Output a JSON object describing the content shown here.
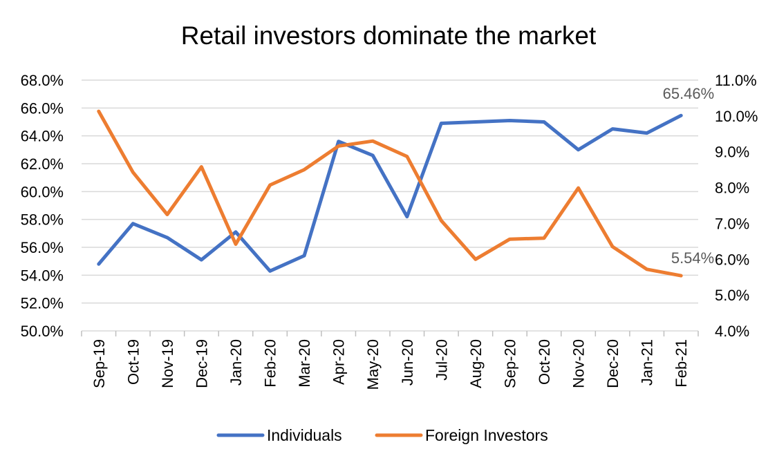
{
  "chart_data": {
    "type": "line",
    "title": "Retail investors dominate the market",
    "categories": [
      "Sep-19",
      "Oct-19",
      "Nov-19",
      "Dec-19",
      "Jan-20",
      "Feb-20",
      "Mar-20",
      "Apr-20",
      "May-20",
      "Jun-20",
      "Jul-20",
      "Aug-20",
      "Sep-20",
      "Oct-20",
      "Nov-20",
      "Dec-20",
      "Jan-21",
      "Feb-21"
    ],
    "y_left": {
      "min": 50,
      "max": 68,
      "step": 2,
      "ticks": [
        "50.0%",
        "52.0%",
        "54.0%",
        "56.0%",
        "58.0%",
        "60.0%",
        "62.0%",
        "64.0%",
        "66.0%",
        "68.0%"
      ]
    },
    "y_right": {
      "min": 4,
      "max": 11,
      "step": 1,
      "ticks": [
        "4.0%",
        "5.0%",
        "6.0%",
        "7.0%",
        "8.0%",
        "9.0%",
        "10.0%",
        "11.0%"
      ]
    },
    "grid": true,
    "legend_position": "bottom",
    "series": [
      {
        "name": "Individuals",
        "axis": "left",
        "color": "#4472C4",
        "values": [
          54.8,
          57.7,
          56.7,
          55.1,
          57.1,
          54.3,
          55.4,
          63.6,
          62.6,
          58.2,
          64.9,
          65.0,
          65.1,
          65.0,
          63.0,
          64.5,
          64.2,
          65.46
        ],
        "end_label": "65.46%"
      },
      {
        "name": "Foreign Investors",
        "axis": "right",
        "color": "#ED7D31",
        "values": [
          10.13,
          8.43,
          7.25,
          8.58,
          6.42,
          8.07,
          8.5,
          9.16,
          9.3,
          8.87,
          7.08,
          6.0,
          6.56,
          6.59,
          7.99,
          6.35,
          5.72,
          5.54
        ],
        "end_label": "5.54%"
      }
    ]
  }
}
